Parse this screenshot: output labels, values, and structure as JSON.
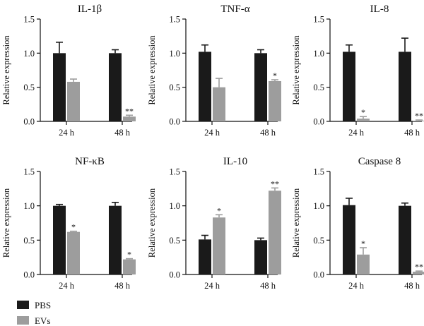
{
  "chart_data": [
    {
      "type": "bar",
      "title": "IL-1β",
      "ylabel": "Relative expression",
      "categories": [
        "24 h",
        "48 h"
      ],
      "ylim": [
        0,
        1.5
      ],
      "yticks": [
        "0.0",
        "0.5",
        "1.0",
        "1.5"
      ],
      "series": [
        {
          "name": "PBS",
          "values": [
            1.0,
            1.0
          ],
          "errors": [
            0.16,
            0.05
          ]
        },
        {
          "name": "EVs",
          "values": [
            0.58,
            0.07
          ],
          "errors": [
            0.04,
            0.02
          ]
        }
      ],
      "annotations": [
        {
          "series": "EVs",
          "category": "48 h",
          "text": "**"
        }
      ]
    },
    {
      "type": "bar",
      "title": "TNF-α",
      "ylabel": "Relative expression",
      "categories": [
        "24 h",
        "48 h"
      ],
      "ylim": [
        0,
        1.5
      ],
      "yticks": [
        "0.0",
        "0.5",
        "1.0",
        "1.5"
      ],
      "series": [
        {
          "name": "PBS",
          "values": [
            1.02,
            1.0
          ],
          "errors": [
            0.1,
            0.05
          ]
        },
        {
          "name": "EVs",
          "values": [
            0.5,
            0.59
          ],
          "errors": [
            0.13,
            0.02
          ]
        }
      ],
      "annotations": [
        {
          "series": "EVs",
          "category": "48 h",
          "text": "*"
        }
      ]
    },
    {
      "type": "bar",
      "title": "IL-8",
      "ylabel": "Relative expression",
      "categories": [
        "24 h",
        "48 h"
      ],
      "ylim": [
        0,
        1.5
      ],
      "yticks": [
        "0.0",
        "0.5",
        "1.0",
        "1.5"
      ],
      "series": [
        {
          "name": "PBS",
          "values": [
            1.02,
            1.02
          ],
          "errors": [
            0.1,
            0.2
          ]
        },
        {
          "name": "EVs",
          "values": [
            0.04,
            0.01
          ],
          "errors": [
            0.03,
            0.01
          ]
        }
      ],
      "annotations": [
        {
          "series": "EVs",
          "category": "24 h",
          "text": "*"
        },
        {
          "series": "EVs",
          "category": "48 h",
          "text": "**"
        }
      ]
    },
    {
      "type": "bar",
      "title": "NF-κB",
      "ylabel": "Relative expression",
      "categories": [
        "24 h",
        "48 h"
      ],
      "ylim": [
        0,
        1.5
      ],
      "yticks": [
        "0.0",
        "0.5",
        "1.0",
        "1.5"
      ],
      "series": [
        {
          "name": "PBS",
          "values": [
            1.0,
            1.0
          ],
          "errors": [
            0.02,
            0.05
          ]
        },
        {
          "name": "EVs",
          "values": [
            0.62,
            0.22
          ],
          "errors": [
            0.01,
            0.01
          ]
        }
      ],
      "annotations": [
        {
          "series": "EVs",
          "category": "24 h",
          "text": "*"
        },
        {
          "series": "EVs",
          "category": "48 h",
          "text": "*"
        }
      ]
    },
    {
      "type": "bar",
      "title": "IL-10",
      "ylabel": "Relative expression",
      "categories": [
        "24 h",
        "48 h"
      ],
      "ylim": [
        0,
        1.5
      ],
      "yticks": [
        "0.0",
        "0.5",
        "1.0",
        "1.5"
      ],
      "series": [
        {
          "name": "PBS",
          "values": [
            0.51,
            0.5
          ],
          "errors": [
            0.06,
            0.03
          ]
        },
        {
          "name": "EVs",
          "values": [
            0.83,
            1.22
          ],
          "errors": [
            0.04,
            0.04
          ]
        }
      ],
      "annotations": [
        {
          "series": "EVs",
          "category": "24 h",
          "text": "*"
        },
        {
          "series": "EVs",
          "category": "48 h",
          "text": "**"
        }
      ]
    },
    {
      "type": "bar",
      "title": "Caspase 8",
      "ylabel": "Relative expression",
      "categories": [
        "24 h",
        "48 h"
      ],
      "ylim": [
        0,
        1.5
      ],
      "yticks": [
        "0.0",
        "0.5",
        "1.0",
        "1.5"
      ],
      "series": [
        {
          "name": "PBS",
          "values": [
            1.01,
            1.0
          ],
          "errors": [
            0.1,
            0.04
          ]
        },
        {
          "name": "EVs",
          "values": [
            0.29,
            0.04
          ],
          "errors": [
            0.1,
            0.01
          ]
        }
      ],
      "annotations": [
        {
          "series": "EVs",
          "category": "24 h",
          "text": "*"
        },
        {
          "series": "EVs",
          "category": "48 h",
          "text": "**"
        }
      ]
    }
  ],
  "legend": {
    "placement": "bottom-left",
    "items": [
      {
        "label": "PBS",
        "color": "#1a1a1a"
      },
      {
        "label": "EVs",
        "color": "#9d9d9d"
      }
    ]
  },
  "colors": {
    "PBS": "#1a1a1a",
    "EVs": "#9d9d9d",
    "axis": "#111111"
  }
}
